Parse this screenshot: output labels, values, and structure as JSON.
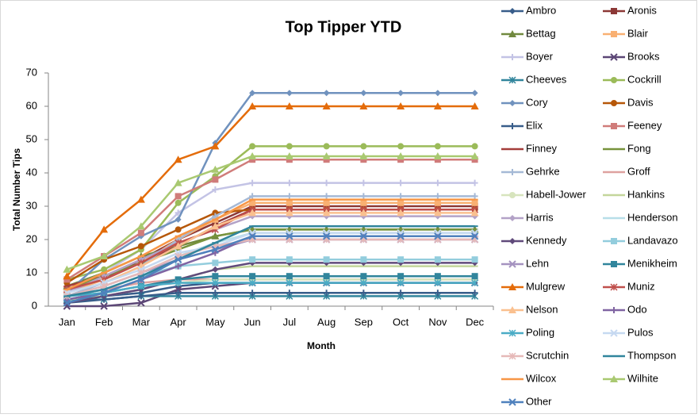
{
  "chart_data": {
    "type": "line",
    "title": "Top Tipper YTD",
    "x_label": "Month",
    "y_label": "Total Number Tips",
    "categories": [
      "Jan",
      "Feb",
      "Mar",
      "Apr",
      "May",
      "Jun",
      "Jul",
      "Aug",
      "Sep",
      "Oct",
      "Nov",
      "Dec"
    ],
    "ylim": [
      0,
      70
    ],
    "yticks": [
      0,
      10,
      20,
      30,
      40,
      50,
      60,
      70
    ],
    "grid": false,
    "legend": "right",
    "series": [
      {
        "name": "Ambro",
        "color": "#385D8A",
        "marker": "diamond",
        "values": [
          1,
          3,
          4,
          6,
          7,
          7,
          7,
          7,
          7,
          7,
          7,
          7
        ]
      },
      {
        "name": "Aronis",
        "color": "#8C3836",
        "marker": "square",
        "values": [
          5,
          8,
          14,
          20,
          25,
          30,
          30,
          30,
          30,
          30,
          30,
          30
        ]
      },
      {
        "name": "Bettag",
        "color": "#71893F",
        "marker": "triangle",
        "values": [
          6,
          10,
          15,
          18,
          21,
          23,
          23,
          23,
          23,
          23,
          23,
          23
        ]
      },
      {
        "name": "Blair",
        "color": "#F9B072",
        "marker": "square",
        "values": [
          4,
          8,
          13,
          20,
          26,
          31,
          31,
          31,
          31,
          31,
          31,
          31
        ]
      },
      {
        "name": "Boyer",
        "color": "#C3C3E5",
        "marker": "plus",
        "values": [
          5,
          10,
          17,
          28,
          35,
          37,
          37,
          37,
          37,
          37,
          37,
          37
        ]
      },
      {
        "name": "Brooks",
        "color": "#5C4776",
        "marker": "x",
        "values": [
          0,
          0,
          1,
          5,
          6,
          7,
          7,
          7,
          7,
          7,
          7,
          7
        ]
      },
      {
        "name": "Cheeves",
        "color": "#31859C",
        "marker": "star",
        "values": [
          2,
          2,
          3,
          3,
          3,
          3,
          3,
          3,
          3,
          3,
          3,
          3
        ]
      },
      {
        "name": "Cockrill",
        "color": "#9BBB59",
        "marker": "circle",
        "values": [
          8,
          11,
          17,
          31,
          39,
          48,
          48,
          48,
          48,
          48,
          48,
          48
        ]
      },
      {
        "name": "Cory",
        "color": "#7092BE",
        "marker": "diamond",
        "values": [
          4,
          14,
          21,
          26,
          49,
          64,
          64,
          64,
          64,
          64,
          64,
          64
        ]
      },
      {
        "name": "Davis",
        "color": "#B65708",
        "marker": "circle",
        "values": [
          7,
          14,
          18,
          23,
          28,
          29,
          29,
          29,
          29,
          29,
          29,
          29
        ]
      },
      {
        "name": "Elix",
        "color": "#385D8A",
        "marker": "plus",
        "values": [
          1,
          2,
          3,
          4,
          4,
          4,
          4,
          4,
          4,
          4,
          4,
          4
        ]
      },
      {
        "name": "Feeney",
        "color": "#D07C7A",
        "marker": "square",
        "values": [
          8,
          15,
          22,
          33,
          38,
          44,
          44,
          44,
          44,
          44,
          44,
          44
        ]
      },
      {
        "name": "Finney",
        "color": "#A43D3A",
        "marker": "dash",
        "values": [
          6,
          9,
          13,
          18,
          24,
          29,
          29,
          29,
          29,
          29,
          29,
          29
        ]
      },
      {
        "name": "Fong",
        "color": "#77933C",
        "marker": "dash",
        "values": [
          5,
          9,
          13,
          17,
          21,
          23,
          23,
          23,
          23,
          23,
          23,
          23
        ]
      },
      {
        "name": "Gehrke",
        "color": "#A5B9D6",
        "marker": "plus",
        "values": [
          3,
          7,
          12,
          20,
          27,
          33,
          33,
          33,
          33,
          33,
          33,
          33
        ]
      },
      {
        "name": "Groff",
        "color": "#DEA29F",
        "marker": "dash",
        "values": [
          3,
          5,
          7,
          8,
          8,
          8,
          8,
          8,
          8,
          8,
          8,
          8
        ]
      },
      {
        "name": "Habell-Jower",
        "color": "#D7E4BD",
        "marker": "circle",
        "values": [
          2,
          4,
          6,
          7,
          8,
          8,
          8,
          8,
          8,
          8,
          8,
          8
        ]
      },
      {
        "name": "Hankins",
        "color": "#C3D69B",
        "marker": "dash",
        "values": [
          2,
          3,
          5,
          8,
          11,
          12,
          12,
          12,
          12,
          12,
          12,
          12
        ]
      },
      {
        "name": "Harris",
        "color": "#B3A2C7",
        "marker": "diamond",
        "values": [
          4,
          9,
          14,
          19,
          23,
          27,
          27,
          27,
          27,
          27,
          27,
          27
        ]
      },
      {
        "name": "Henderson",
        "color": "#B7DEE8",
        "marker": "dash",
        "values": [
          3,
          6,
          10,
          15,
          19,
          22,
          22,
          22,
          22,
          22,
          22,
          22
        ]
      },
      {
        "name": "Kennedy",
        "color": "#604A7B",
        "marker": "diamond",
        "values": [
          1,
          3,
          5,
          8,
          11,
          13,
          13,
          13,
          13,
          13,
          13,
          13
        ]
      },
      {
        "name": "Landavazo",
        "color": "#93CDDD",
        "marker": "square",
        "values": [
          3,
          5,
          9,
          12,
          13,
          14,
          14,
          14,
          14,
          14,
          14,
          14
        ]
      },
      {
        "name": "Lehn",
        "color": "#A593C0",
        "marker": "x",
        "values": [
          3,
          6,
          10,
          14,
          17,
          20,
          20,
          20,
          20,
          20,
          20,
          20
        ]
      },
      {
        "name": "Menikheim",
        "color": "#31859C",
        "marker": "square",
        "values": [
          2,
          4,
          6,
          8,
          9,
          9,
          9,
          9,
          9,
          9,
          9,
          9
        ]
      },
      {
        "name": "Mulgrew",
        "color": "#E46C0A",
        "marker": "triangle",
        "values": [
          9,
          23,
          32,
          44,
          48,
          60,
          60,
          60,
          60,
          60,
          60,
          60
        ]
      },
      {
        "name": "Muniz",
        "color": "#C0504D",
        "marker": "star",
        "values": [
          5,
          8,
          13,
          19,
          23,
          29,
          29,
          29,
          29,
          29,
          29,
          29
        ]
      },
      {
        "name": "Nelson",
        "color": "#FAC08F",
        "marker": "triangle",
        "values": [
          4,
          7,
          12,
          18,
          24,
          28,
          28,
          28,
          28,
          28,
          28,
          28
        ]
      },
      {
        "name": "Odo",
        "color": "#8064A2",
        "marker": "plus",
        "values": [
          2,
          4,
          8,
          12,
          16,
          21,
          21,
          21,
          21,
          21,
          21,
          21
        ]
      },
      {
        "name": "Poling",
        "color": "#4BACC6",
        "marker": "star",
        "values": [
          3,
          4,
          6,
          7,
          7,
          7,
          7,
          7,
          7,
          7,
          7,
          7
        ]
      },
      {
        "name": "Pulos",
        "color": "#C6D9F1",
        "marker": "x",
        "values": [
          4,
          7,
          11,
          16,
          18,
          22,
          22,
          22,
          22,
          22,
          22,
          22
        ]
      },
      {
        "name": "Scrutchin",
        "color": "#E6B9B8",
        "marker": "star",
        "values": [
          3,
          6,
          10,
          15,
          18,
          20,
          20,
          20,
          20,
          20,
          20,
          20
        ]
      },
      {
        "name": "Thompson",
        "color": "#31859C",
        "marker": "dash",
        "values": [
          3,
          5,
          9,
          14,
          19,
          24,
          24,
          24,
          24,
          24,
          24,
          24
        ]
      },
      {
        "name": "Wilcox",
        "color": "#F79646",
        "marker": "dash",
        "values": [
          5,
          10,
          15,
          21,
          26,
          32,
          32,
          32,
          32,
          32,
          32,
          32
        ]
      },
      {
        "name": "Wilhite",
        "color": "#A9C971",
        "marker": "triangle",
        "values": [
          11,
          15,
          24,
          37,
          41,
          45,
          45,
          45,
          45,
          45,
          45,
          45
        ]
      },
      {
        "name": "Other",
        "color": "#4F81BD",
        "marker": "x",
        "values": [
          1,
          4,
          8,
          14,
          17,
          21,
          21,
          21,
          21,
          21,
          21,
          21
        ]
      }
    ]
  }
}
